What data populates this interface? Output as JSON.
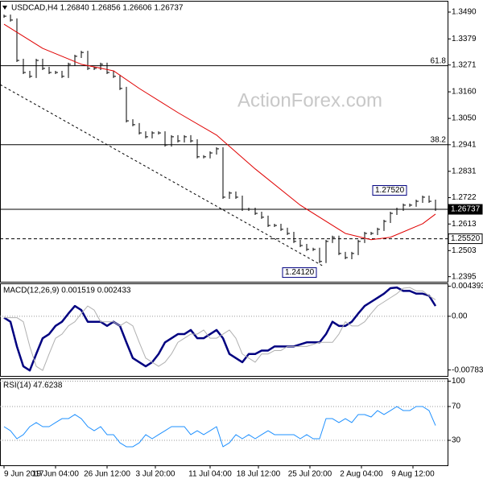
{
  "chart_data": [
    {
      "type": "bar",
      "title": "USDCAD,H4  1.26840 1.26856 1.26606 1.26737",
      "watermark": "ActionForex.com",
      "xlim": [
        -0.625,
        68.875
      ],
      "ylim": [
        1.2374,
        1.354
      ],
      "yticks": [
        {
          "value": 1.349,
          "label": "1.3490"
        },
        1.3379,
        1.3271,
        {
          "value": 1.316,
          "label": "1.3160"
        },
        {
          "value": 1.305,
          "label": "1.3050"
        },
        1.2941,
        1.2831,
        1.2722,
        1.2613,
        1.2503,
        1.2395
      ],
      "series": [
        {
          "style": "bars",
          "color": "#000000",
          "values": [
            1.3473,
            1.3457,
            1.329,
            1.324,
            1.3224,
            1.329,
            1.3257,
            1.324,
            1.324,
            1.3224,
            1.3274,
            1.3307,
            1.3323,
            1.3257,
            1.3257,
            1.3274,
            1.324,
            1.3224,
            1.3174,
            1.304,
            1.3024,
            1.299,
            1.2974,
            1.299,
            1.299,
            1.294,
            1.2974,
            1.2957,
            1.2974,
            1.2957,
            1.2891,
            1.2891,
            1.2907,
            1.2924,
            1.2724,
            1.2741,
            1.2724,
            1.2674,
            1.2674,
            1.2657,
            1.2641,
            1.2607,
            1.2607,
            1.2591,
            1.2574,
            1.2541,
            1.2524,
            1.2508,
            1.2508,
            1.2458,
            1.2541,
            1.2558,
            1.2491,
            1.2474,
            1.2491,
            1.2541,
            1.2574,
            1.2574,
            1.2591,
            1.2624,
            1.2657,
            1.2674,
            1.2691,
            1.2691,
            1.2707,
            1.2724,
            1.2707,
            1.2674
          ]
        },
        {
          "style": "line",
          "color": "#e00000",
          "x": [
            0,
            6,
            12,
            17,
            21,
            27,
            33,
            39,
            46,
            53,
            57,
            60,
            65,
            67
          ],
          "values": [
            1.344,
            1.334,
            1.3274,
            1.3247,
            1.3174,
            1.3074,
            1.2981,
            1.2841,
            1.2691,
            1.2574,
            1.2548,
            1.2558,
            1.2614,
            1.2654
          ]
        },
        {
          "style": "dashed",
          "color": "#000000",
          "x": [
            -0.6,
            49.4
          ],
          "values": [
            1.319,
            1.2441
          ]
        }
      ],
      "hlines": [
        {
          "value": 1.3268,
          "label": "61.8",
          "color": "#000000",
          "label_at": "plot"
        },
        {
          "value": 1.2941,
          "label": "38.2",
          "color": "#000000",
          "label_at": "plot"
        },
        {
          "value": 1.26737,
          "label": "1.26737",
          "color": "#000000",
          "label_at": "axis"
        },
        {
          "value": 1.2552,
          "label": "1.25520",
          "color": "#000000",
          "label_at": "axis",
          "dash": true
        }
      ],
      "annotations": [
        {
          "x": 63,
          "value": 1.2752,
          "label": "1.27520"
        },
        {
          "x": 49,
          "value": 1.2412,
          "label": "1.24120"
        }
      ]
    },
    {
      "type": "line",
      "title": "MACD(12,26,9) 0.001519 0.002433",
      "xlim": [
        -0.625,
        68.875
      ],
      "ylim": [
        -0.0087,
        0.0048
      ],
      "yticks": [
        0.004393,
        {
          "value": 0,
          "label": "0.00"
        },
        -0.007833
      ],
      "zero_line": true,
      "series": [
        {
          "style": "line",
          "color": "#000080",
          "width": 2.5,
          "values": [
            -0.0002,
            -0.0008,
            -0.0044,
            -0.0073,
            -0.0079,
            -0.0055,
            -0.0032,
            -0.0026,
            -0.0014,
            -0.0008,
            0.0004,
            0.0015,
            0.0009,
            -0.0008,
            -0.0008,
            -0.0008,
            -0.0014,
            -0.0008,
            -0.0014,
            -0.0038,
            -0.0061,
            -0.0067,
            -0.0073,
            -0.0067,
            -0.0055,
            -0.0038,
            -0.0032,
            -0.0026,
            -0.0026,
            -0.002,
            -0.0032,
            -0.0032,
            -0.0026,
            -0.002,
            -0.0032,
            -0.0055,
            -0.0061,
            -0.0067,
            -0.0055,
            -0.0055,
            -0.005,
            -0.005,
            -0.0044,
            -0.0044,
            -0.0044,
            -0.0044,
            -0.0041,
            -0.0038,
            -0.0038,
            -0.0038,
            -0.0026,
            -0.0008,
            -0.0014,
            -0.0014,
            -0.0008,
            0.0004,
            0.0015,
            0.0021,
            0.0027,
            0.0033,
            0.0041,
            0.0042,
            0.0037,
            0.0037,
            0.0033,
            0.0033,
            0.003,
            0.0015
          ]
        },
        {
          "style": "line",
          "color": "#b0b0b0",
          "width": 1,
          "values": [
            -0.0002,
            -0.0002,
            -0.0002,
            -0.0008,
            -0.0044,
            -0.0073,
            -0.0079,
            -0.0055,
            -0.0032,
            -0.0026,
            -0.0014,
            -0.0008,
            0.0004,
            0.0015,
            0.0009,
            -0.0008,
            -0.0008,
            -0.0008,
            -0.0014,
            -0.0008,
            -0.0014,
            -0.0038,
            -0.0061,
            -0.0067,
            -0.0073,
            -0.0067,
            -0.0055,
            -0.0038,
            -0.0032,
            -0.0026,
            -0.0026,
            -0.002,
            -0.0032,
            -0.0032,
            -0.0026,
            -0.002,
            -0.0032,
            -0.0055,
            -0.0061,
            -0.0067,
            -0.0055,
            -0.0055,
            -0.005,
            -0.005,
            -0.0044,
            -0.0044,
            -0.0044,
            -0.0044,
            -0.0041,
            -0.0038,
            -0.0038,
            -0.0038,
            -0.0026,
            -0.0008,
            -0.0014,
            -0.0014,
            -0.0008,
            0.0004,
            0.0015,
            0.0021,
            0.0027,
            0.0033,
            0.0041,
            0.0042,
            0.0037,
            0.0037,
            0.003,
            0.0024
          ]
        }
      ]
    },
    {
      "type": "line",
      "title": "RSI(14) 47.6238",
      "xlim": [
        -0.625,
        68.875
      ],
      "ylim": [
        0,
        100
      ],
      "yticks": [
        100,
        70,
        30
      ],
      "grid": true,
      "xticks": [
        {
          "value": 0,
          "label": "9 Jun 2017"
        },
        {
          "value": 8,
          "label": "19 Jun 04:00"
        },
        {
          "value": 16,
          "label": "26 Jun 12:00"
        },
        {
          "value": 23.5,
          "label": "3 Jul 20:00"
        },
        {
          "value": 32,
          "label": "11 Jul 04:00"
        },
        {
          "value": 39.5,
          "label": "18 Jul 12:00"
        },
        {
          "value": 47.5,
          "label": "25 Jul 20:00"
        },
        {
          "value": 55.5,
          "label": "2 Aug 04:00"
        },
        {
          "value": 63.5,
          "label": "9 Aug 12:00"
        }
      ],
      "series": [
        {
          "style": "line",
          "color": "#1e90ff",
          "width": 1,
          "values": [
            46.2,
            41.4,
            31.9,
            36.7,
            46.2,
            51.0,
            46.2,
            46.2,
            51.0,
            55.7,
            55.7,
            60.5,
            55.7,
            46.2,
            41.4,
            46.2,
            36.7,
            36.7,
            27.1,
            22.4,
            22.4,
            27.1,
            36.7,
            31.9,
            36.7,
            41.4,
            46.2,
            46.2,
            46.2,
            36.7,
            41.4,
            36.7,
            41.4,
            46.2,
            22.4,
            27.1,
            36.7,
            31.9,
            36.7,
            31.9,
            36.7,
            41.4,
            36.7,
            36.7,
            36.7,
            36.7,
            31.9,
            36.7,
            31.9,
            31.9,
            55.7,
            55.7,
            51.0,
            55.7,
            51.0,
            60.5,
            60.5,
            57.6,
            65.2,
            60.5,
            65.2,
            70.0,
            65.2,
            65.2,
            70.0,
            70.0,
            65.2,
            47.6
          ]
        }
      ]
    }
  ]
}
